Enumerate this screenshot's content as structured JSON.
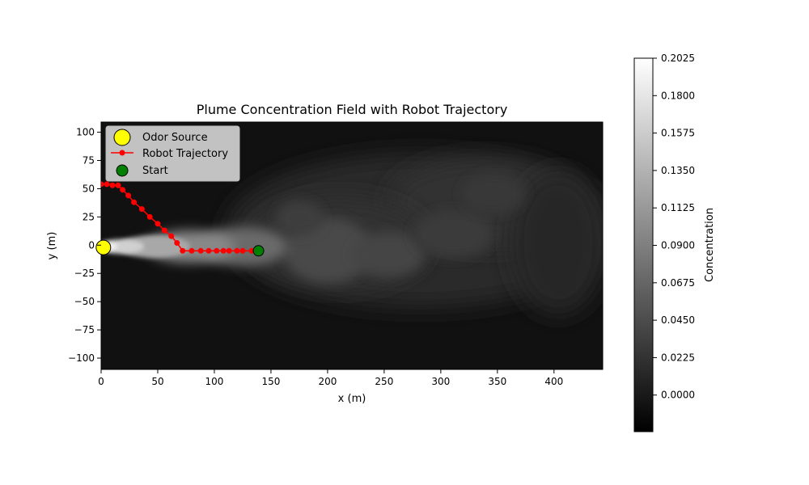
{
  "chart_data": {
    "type": "heatmap",
    "title": "Plume Concentration Field with Robot Trajectory",
    "xlabel": "x (m)",
    "ylabel": "y (m)",
    "xlim": [
      0,
      443
    ],
    "ylim": [
      -110,
      109
    ],
    "x_ticks": [
      0,
      50,
      100,
      150,
      200,
      250,
      300,
      350,
      400
    ],
    "y_ticks": [
      100,
      75,
      50,
      25,
      0,
      -25,
      -50,
      -75,
      -100
    ],
    "grid": false,
    "legend_position": "upper-left",
    "legend": [
      {
        "label": "Odor Source",
        "marker": "circle",
        "color": "#ffff00"
      },
      {
        "label": "Robot Trajectory",
        "marker": "line-dot",
        "color": "#ff0000"
      },
      {
        "label": "Start",
        "marker": "circle",
        "color": "#008000"
      }
    ],
    "odor_source": {
      "x": 2,
      "y": -2
    },
    "start": {
      "x": 139,
      "y": -5
    },
    "robot_trajectory": {
      "x": [
        139,
        133,
        125,
        120,
        113,
        108,
        102,
        95,
        88,
        80,
        72,
        67,
        62,
        56,
        50,
        43,
        36,
        29,
        24,
        19,
        15,
        10,
        5,
        0
      ],
      "y": [
        -5,
        -5,
        -5,
        -5,
        -5,
        -5,
        -5,
        -5,
        -5,
        -5,
        -5,
        2,
        8,
        13,
        19,
        25,
        32,
        38,
        44,
        49,
        53,
        53,
        54,
        54
      ]
    },
    "plume_extent": {
      "x_min": 0,
      "x_max": 443,
      "core_y": 0
    },
    "colorbar": {
      "label": "Concentration",
      "min": -0.022,
      "max": 0.2025,
      "ticks": [
        "0.2025",
        "0.1800",
        "0.1575",
        "0.1350",
        "0.1125",
        "0.0900",
        "0.0675",
        "0.0450",
        "0.0225",
        "0.0000"
      ],
      "colormap": "gray"
    },
    "colors": {
      "trajectory": "#ff0000",
      "odor_source": "#ffff00",
      "start": "#008000",
      "background": "#111111"
    }
  }
}
